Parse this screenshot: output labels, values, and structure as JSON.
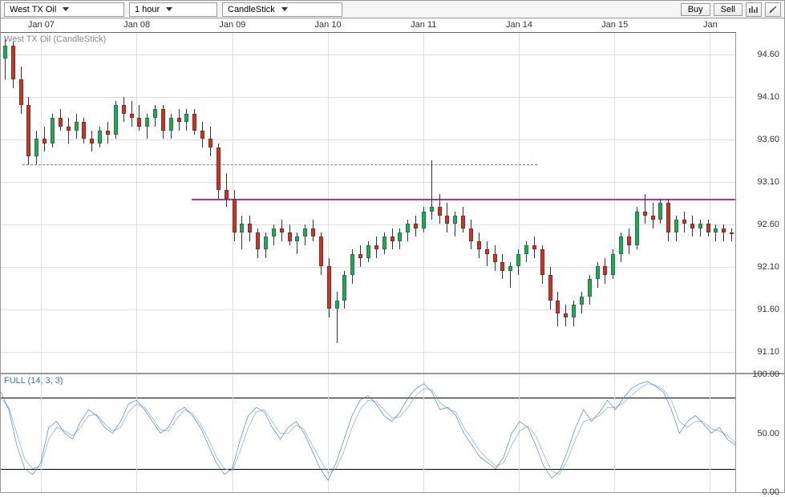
{
  "toolbar": {
    "instrument": "West TX Oil",
    "timeframe": "1 hour",
    "chartType": "CandleStick",
    "buy": "Buy",
    "sell": "Sell"
  },
  "xaxis": {
    "ticks": [
      "Jan 07",
      "Jan 08",
      "Jan 09",
      "Jan 10",
      "Jan 11",
      "Jan 14",
      "Jan 15",
      "Jan"
    ],
    "tick_positions_pct": [
      5.5,
      18.5,
      31.5,
      44.5,
      57.5,
      70.5,
      83.5,
      96.5
    ]
  },
  "main": {
    "label": "West TX Oil (CandleStick)",
    "ylim": [
      90.85,
      94.85
    ],
    "yticks": [
      91.1,
      91.6,
      92.1,
      92.6,
      93.1,
      93.6,
      94.1,
      94.6
    ],
    "grid_color": "#dddddd",
    "background": "#ffffff",
    "resistance_line": {
      "y": 92.9,
      "color": "#b030b0",
      "width": 2,
      "x_start_pct": 26,
      "x_end_pct": 100,
      "dash": false
    },
    "dashed_line": {
      "y": 93.3,
      "color": "#c060c0",
      "width": 1,
      "x_start_pct": 3,
      "x_end_pct": 73,
      "dash": true
    },
    "candles": [
      {
        "x": 0.5,
        "o": 94.55,
        "h": 94.8,
        "l": 94.3,
        "c": 94.7
      },
      {
        "x": 1.5,
        "o": 94.7,
        "h": 94.75,
        "l": 94.2,
        "c": 94.3
      },
      {
        "x": 2.5,
        "o": 94.3,
        "h": 94.45,
        "l": 93.9,
        "c": 94.0
      },
      {
        "x": 3.5,
        "o": 94.0,
        "h": 94.1,
        "l": 93.3,
        "c": 93.4
      },
      {
        "x": 4.5,
        "o": 93.4,
        "h": 93.7,
        "l": 93.3,
        "c": 93.6
      },
      {
        "x": 5.5,
        "o": 93.6,
        "h": 93.75,
        "l": 93.45,
        "c": 93.55
      },
      {
        "x": 6.5,
        "o": 93.55,
        "h": 93.9,
        "l": 93.5,
        "c": 93.85
      },
      {
        "x": 7.5,
        "o": 93.85,
        "h": 93.95,
        "l": 93.7,
        "c": 93.75
      },
      {
        "x": 8.5,
        "o": 93.75,
        "h": 93.85,
        "l": 93.55,
        "c": 93.7
      },
      {
        "x": 9.5,
        "o": 93.7,
        "h": 93.9,
        "l": 93.6,
        "c": 93.8
      },
      {
        "x": 10.5,
        "o": 93.8,
        "h": 93.85,
        "l": 93.55,
        "c": 93.6
      },
      {
        "x": 11.5,
        "o": 93.6,
        "h": 93.7,
        "l": 93.45,
        "c": 93.55
      },
      {
        "x": 12.5,
        "o": 93.55,
        "h": 93.75,
        "l": 93.5,
        "c": 93.7
      },
      {
        "x": 13.5,
        "o": 93.7,
        "h": 93.8,
        "l": 93.55,
        "c": 93.65
      },
      {
        "x": 14.5,
        "o": 93.65,
        "h": 94.05,
        "l": 93.6,
        "c": 94.0
      },
      {
        "x": 15.5,
        "o": 94.0,
        "h": 94.1,
        "l": 93.8,
        "c": 93.9
      },
      {
        "x": 16.5,
        "o": 93.9,
        "h": 94.05,
        "l": 93.75,
        "c": 93.85
      },
      {
        "x": 17.5,
        "o": 93.85,
        "h": 94.0,
        "l": 93.7,
        "c": 93.75
      },
      {
        "x": 18.5,
        "o": 93.75,
        "h": 93.9,
        "l": 93.6,
        "c": 93.85
      },
      {
        "x": 19.5,
        "o": 93.85,
        "h": 94.0,
        "l": 93.75,
        "c": 93.95
      },
      {
        "x": 20.5,
        "o": 93.95,
        "h": 94.0,
        "l": 93.6,
        "c": 93.7
      },
      {
        "x": 21.5,
        "o": 93.7,
        "h": 93.9,
        "l": 93.6,
        "c": 93.85
      },
      {
        "x": 22.5,
        "o": 93.85,
        "h": 93.95,
        "l": 93.7,
        "c": 93.8
      },
      {
        "x": 23.5,
        "o": 93.8,
        "h": 93.95,
        "l": 93.7,
        "c": 93.9
      },
      {
        "x": 24.5,
        "o": 93.9,
        "h": 93.95,
        "l": 93.65,
        "c": 93.7
      },
      {
        "x": 25.5,
        "o": 93.7,
        "h": 93.8,
        "l": 93.5,
        "c": 93.6
      },
      {
        "x": 26.5,
        "o": 93.6,
        "h": 93.75,
        "l": 93.4,
        "c": 93.5
      },
      {
        "x": 27.5,
        "o": 93.5,
        "h": 93.55,
        "l": 92.9,
        "c": 93.0
      },
      {
        "x": 28.5,
        "o": 93.0,
        "h": 93.2,
        "l": 92.8,
        "c": 92.9
      },
      {
        "x": 29.5,
        "o": 92.9,
        "h": 93.0,
        "l": 92.4,
        "c": 92.5
      },
      {
        "x": 30.5,
        "o": 92.5,
        "h": 92.7,
        "l": 92.3,
        "c": 92.6
      },
      {
        "x": 31.5,
        "o": 92.6,
        "h": 92.7,
        "l": 92.4,
        "c": 92.5
      },
      {
        "x": 32.5,
        "o": 92.5,
        "h": 92.55,
        "l": 92.2,
        "c": 92.3
      },
      {
        "x": 33.5,
        "o": 92.3,
        "h": 92.5,
        "l": 92.2,
        "c": 92.45
      },
      {
        "x": 34.5,
        "o": 92.45,
        "h": 92.6,
        "l": 92.35,
        "c": 92.55
      },
      {
        "x": 35.5,
        "o": 92.55,
        "h": 92.65,
        "l": 92.4,
        "c": 92.5
      },
      {
        "x": 36.5,
        "o": 92.5,
        "h": 92.6,
        "l": 92.35,
        "c": 92.4
      },
      {
        "x": 37.5,
        "o": 92.4,
        "h": 92.5,
        "l": 92.25,
        "c": 92.45
      },
      {
        "x": 38.5,
        "o": 92.45,
        "h": 92.6,
        "l": 92.35,
        "c": 92.55
      },
      {
        "x": 39.5,
        "o": 92.55,
        "h": 92.65,
        "l": 92.4,
        "c": 92.45
      },
      {
        "x": 40.5,
        "o": 92.45,
        "h": 92.5,
        "l": 92.0,
        "c": 92.1
      },
      {
        "x": 41.5,
        "o": 92.1,
        "h": 92.2,
        "l": 91.5,
        "c": 91.6
      },
      {
        "x": 42.5,
        "o": 91.6,
        "h": 91.8,
        "l": 91.2,
        "c": 91.7
      },
      {
        "x": 43.5,
        "o": 91.7,
        "h": 92.05,
        "l": 91.6,
        "c": 92.0
      },
      {
        "x": 44.5,
        "o": 92.0,
        "h": 92.3,
        "l": 91.9,
        "c": 92.25
      },
      {
        "x": 45.5,
        "o": 92.25,
        "h": 92.35,
        "l": 92.1,
        "c": 92.2
      },
      {
        "x": 46.5,
        "o": 92.2,
        "h": 92.4,
        "l": 92.15,
        "c": 92.35
      },
      {
        "x": 47.5,
        "o": 92.35,
        "h": 92.45,
        "l": 92.2,
        "c": 92.3
      },
      {
        "x": 48.5,
        "o": 92.3,
        "h": 92.5,
        "l": 92.25,
        "c": 92.45
      },
      {
        "x": 49.5,
        "o": 92.45,
        "h": 92.55,
        "l": 92.3,
        "c": 92.4
      },
      {
        "x": 50.5,
        "o": 92.4,
        "h": 92.55,
        "l": 92.3,
        "c": 92.5
      },
      {
        "x": 51.5,
        "o": 92.5,
        "h": 92.65,
        "l": 92.4,
        "c": 92.6
      },
      {
        "x": 52.5,
        "o": 92.6,
        "h": 92.7,
        "l": 92.45,
        "c": 92.55
      },
      {
        "x": 53.5,
        "o": 92.55,
        "h": 92.8,
        "l": 92.5,
        "c": 92.75
      },
      {
        "x": 54.5,
        "o": 92.75,
        "h": 93.35,
        "l": 92.65,
        "c": 92.8
      },
      {
        "x": 55.5,
        "o": 92.8,
        "h": 92.95,
        "l": 92.6,
        "c": 92.7
      },
      {
        "x": 56.5,
        "o": 92.7,
        "h": 92.85,
        "l": 92.5,
        "c": 92.6
      },
      {
        "x": 57.5,
        "o": 92.6,
        "h": 92.75,
        "l": 92.45,
        "c": 92.7
      },
      {
        "x": 58.5,
        "o": 92.7,
        "h": 92.8,
        "l": 92.5,
        "c": 92.55
      },
      {
        "x": 59.5,
        "o": 92.55,
        "h": 92.65,
        "l": 92.3,
        "c": 92.4
      },
      {
        "x": 60.5,
        "o": 92.4,
        "h": 92.5,
        "l": 92.2,
        "c": 92.3
      },
      {
        "x": 61.5,
        "o": 92.3,
        "h": 92.4,
        "l": 92.1,
        "c": 92.25
      },
      {
        "x": 62.5,
        "o": 92.25,
        "h": 92.35,
        "l": 92.05,
        "c": 92.15
      },
      {
        "x": 63.5,
        "o": 92.15,
        "h": 92.25,
        "l": 91.95,
        "c": 92.05
      },
      {
        "x": 64.5,
        "o": 92.05,
        "h": 92.15,
        "l": 91.85,
        "c": 92.1
      },
      {
        "x": 65.5,
        "o": 92.1,
        "h": 92.3,
        "l": 92.0,
        "c": 92.25
      },
      {
        "x": 66.5,
        "o": 92.25,
        "h": 92.4,
        "l": 92.15,
        "c": 92.35
      },
      {
        "x": 67.5,
        "o": 92.35,
        "h": 92.45,
        "l": 92.2,
        "c": 92.3
      },
      {
        "x": 68.5,
        "o": 92.3,
        "h": 92.35,
        "l": 91.9,
        "c": 92.0
      },
      {
        "x": 69.5,
        "o": 92.0,
        "h": 92.1,
        "l": 91.6,
        "c": 91.7
      },
      {
        "x": 70.5,
        "o": 91.7,
        "h": 91.8,
        "l": 91.4,
        "c": 91.55
      },
      {
        "x": 71.5,
        "o": 91.55,
        "h": 91.65,
        "l": 91.4,
        "c": 91.5
      },
      {
        "x": 72.5,
        "o": 91.5,
        "h": 91.7,
        "l": 91.4,
        "c": 91.65
      },
      {
        "x": 73.5,
        "o": 91.65,
        "h": 91.8,
        "l": 91.55,
        "c": 91.75
      },
      {
        "x": 74.5,
        "o": 91.75,
        "h": 92.0,
        "l": 91.65,
        "c": 91.95
      },
      {
        "x": 75.5,
        "o": 91.95,
        "h": 92.15,
        "l": 91.85,
        "c": 92.1
      },
      {
        "x": 76.5,
        "o": 92.1,
        "h": 92.2,
        "l": 91.9,
        "c": 92.0
      },
      {
        "x": 77.5,
        "o": 92.0,
        "h": 92.3,
        "l": 91.95,
        "c": 92.25
      },
      {
        "x": 78.5,
        "o": 92.25,
        "h": 92.5,
        "l": 92.15,
        "c": 92.45
      },
      {
        "x": 79.5,
        "o": 92.45,
        "h": 92.55,
        "l": 92.25,
        "c": 92.35
      },
      {
        "x": 80.5,
        "o": 92.35,
        "h": 92.8,
        "l": 92.3,
        "c": 92.75
      },
      {
        "x": 81.5,
        "o": 92.75,
        "h": 92.95,
        "l": 92.6,
        "c": 92.7
      },
      {
        "x": 82.5,
        "o": 92.7,
        "h": 92.85,
        "l": 92.55,
        "c": 92.65
      },
      {
        "x": 83.5,
        "o": 92.65,
        "h": 92.9,
        "l": 92.6,
        "c": 92.85
      },
      {
        "x": 84.5,
        "o": 92.85,
        "h": 92.9,
        "l": 92.4,
        "c": 92.5
      },
      {
        "x": 85.5,
        "o": 92.5,
        "h": 92.7,
        "l": 92.4,
        "c": 92.65
      },
      {
        "x": 86.5,
        "o": 92.65,
        "h": 92.75,
        "l": 92.5,
        "c": 92.6
      },
      {
        "x": 87.5,
        "o": 92.6,
        "h": 92.7,
        "l": 92.45,
        "c": 92.55
      },
      {
        "x": 88.5,
        "o": 92.55,
        "h": 92.65,
        "l": 92.45,
        "c": 92.6
      },
      {
        "x": 89.5,
        "o": 92.6,
        "h": 92.65,
        "l": 92.45,
        "c": 92.5
      },
      {
        "x": 90.5,
        "o": 92.5,
        "h": 92.6,
        "l": 92.4,
        "c": 92.55
      },
      {
        "x": 91.5,
        "o": 92.55,
        "h": 92.6,
        "l": 92.4,
        "c": 92.5
      },
      {
        "x": 92.5,
        "o": 92.5,
        "h": 92.55,
        "l": 92.4,
        "c": 92.48
      }
    ]
  },
  "sub": {
    "label": "FULL (14, 3, 3)",
    "ylim": [
      0,
      100
    ],
    "yticks": [
      0.0,
      50.0,
      100.0
    ],
    "overbought": 80,
    "oversold": 20,
    "line_color_k": "#3b6fb0",
    "line_color_d": "#6a9ed4",
    "k": [
      85,
      70,
      40,
      20,
      15,
      25,
      55,
      60,
      50,
      45,
      60,
      70,
      65,
      55,
      50,
      60,
      75,
      78,
      70,
      60,
      50,
      55,
      68,
      72,
      65,
      55,
      40,
      25,
      15,
      20,
      45,
      65,
      72,
      68,
      55,
      45,
      55,
      60,
      50,
      35,
      20,
      10,
      25,
      45,
      65,
      78,
      82,
      75,
      65,
      60,
      68,
      80,
      88,
      92,
      85,
      70,
      72,
      65,
      50,
      40,
      30,
      25,
      20,
      30,
      50,
      60,
      55,
      40,
      22,
      12,
      18,
      35,
      55,
      70,
      60,
      68,
      78,
      70,
      80,
      88,
      92,
      94,
      90,
      85,
      70,
      50,
      60,
      65,
      58,
      50,
      55,
      45,
      40
    ],
    "d": [
      80,
      72,
      50,
      28,
      20,
      22,
      45,
      55,
      52,
      48,
      55,
      65,
      66,
      58,
      52,
      55,
      68,
      75,
      72,
      63,
      53,
      52,
      62,
      70,
      67,
      58,
      45,
      30,
      20,
      18,
      35,
      55,
      68,
      70,
      60,
      50,
      50,
      57,
      53,
      40,
      28,
      16,
      20,
      35,
      55,
      70,
      78,
      77,
      70,
      63,
      64,
      72,
      82,
      88,
      87,
      76,
      71,
      68,
      55,
      45,
      35,
      28,
      22,
      25,
      40,
      52,
      56,
      48,
      32,
      18,
      15,
      28,
      45,
      60,
      62,
      65,
      72,
      72,
      76,
      82,
      88,
      92,
      91,
      87,
      78,
      60,
      55,
      60,
      60,
      54,
      52,
      48,
      42
    ]
  }
}
